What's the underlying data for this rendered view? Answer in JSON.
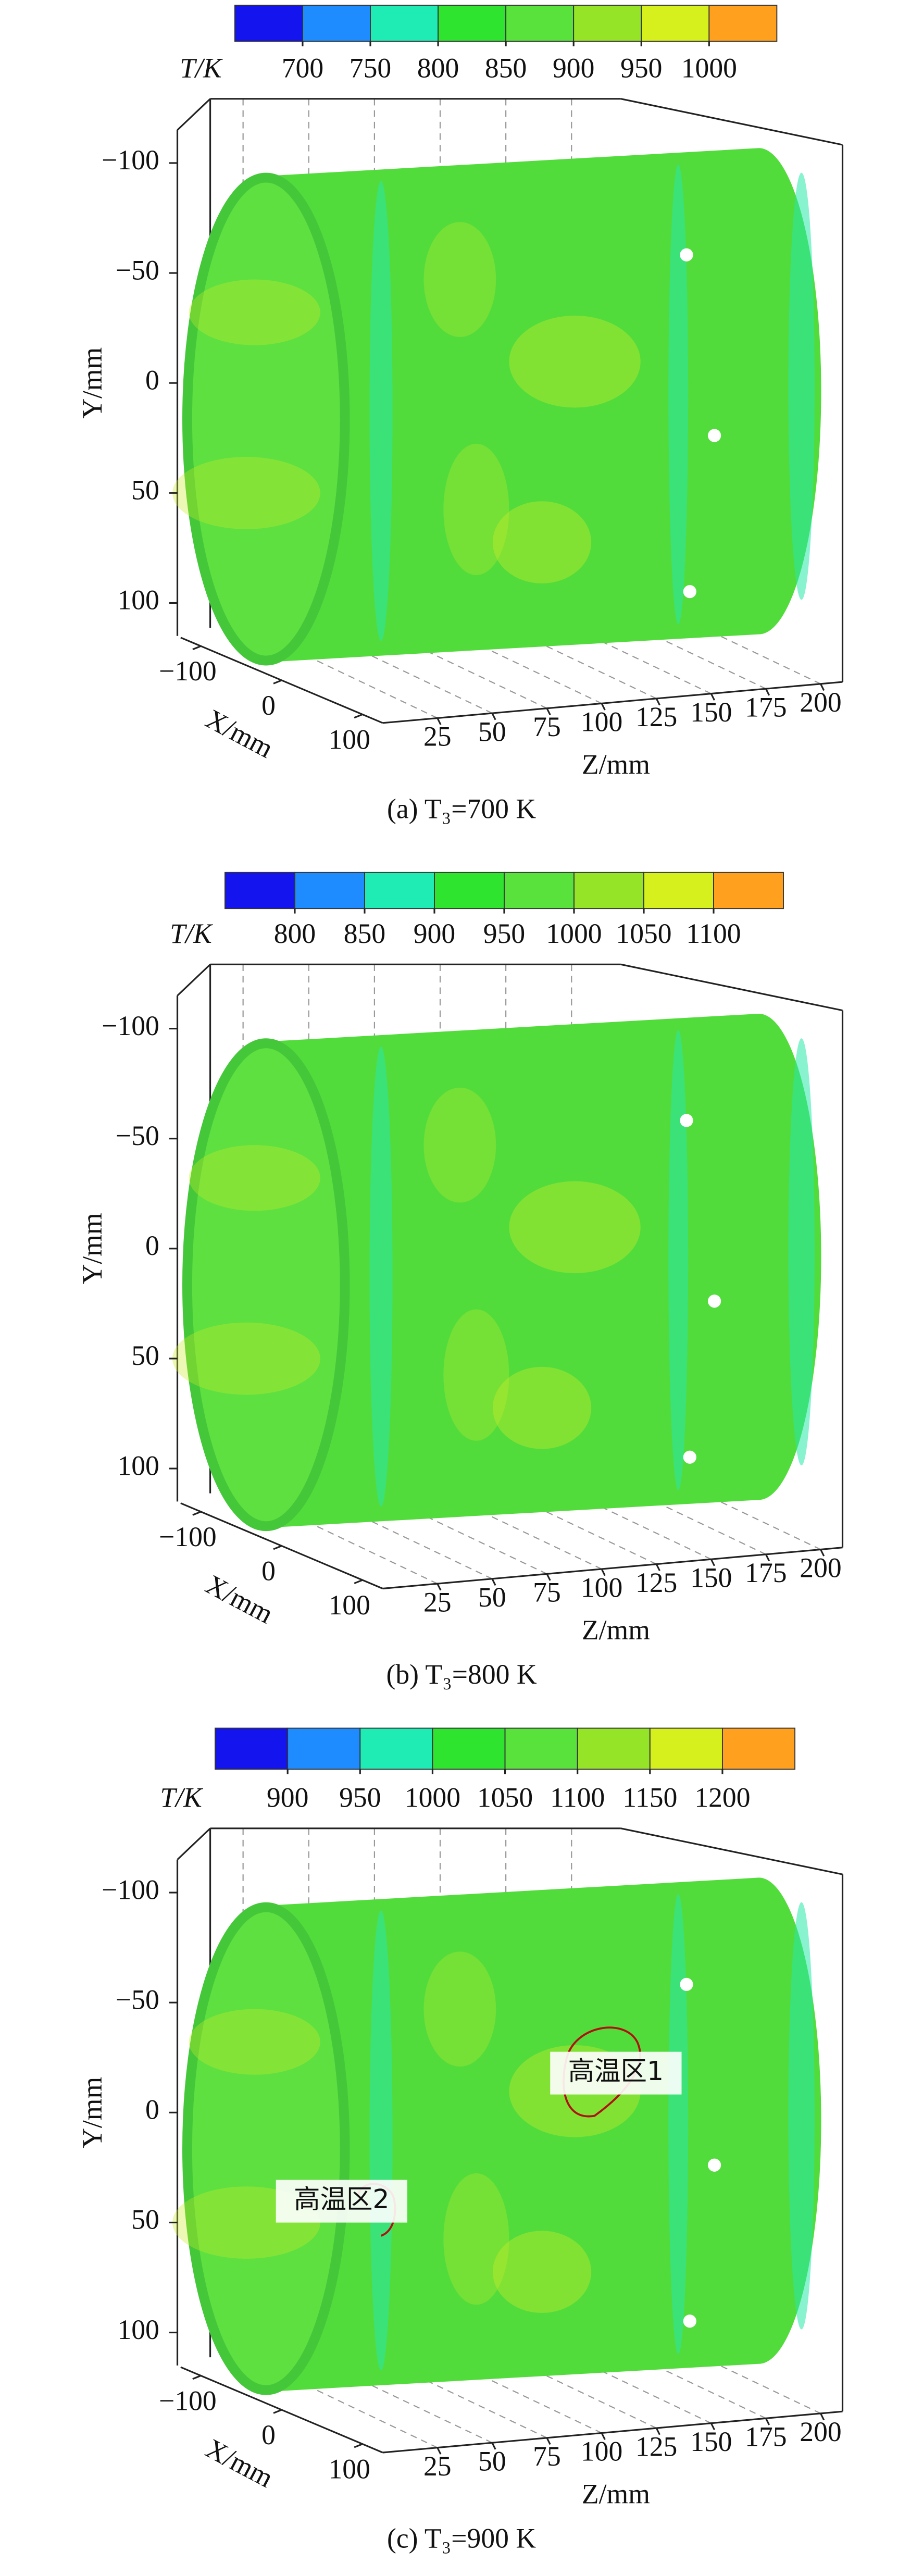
{
  "chart_data": [
    {
      "type": "surface3d",
      "caption": "(a) T₃=700 K",
      "colorbar_label": "T/K",
      "colorbar_colors": [
        "#1414ee",
        "#1e8cff",
        "#1eecb4",
        "#2ee42e",
        "#5ae23c",
        "#96e428",
        "#d6f01e",
        "#ffa01e"
      ],
      "colorbar_ticks": [
        700,
        750,
        800,
        850,
        900,
        950,
        1000
      ],
      "ylabel": "Y/mm",
      "xlabel": "X/mm",
      "zlabel": "Z/mm",
      "ylim": [
        -115,
        115
      ],
      "yticks": [
        {
          "value": -100,
          "label": "−100"
        },
        {
          "value": -50,
          "label": "−50"
        },
        0,
        50,
        100
      ],
      "xlim": [
        -125,
        125
      ],
      "xticks": [
        {
          "value": -100,
          "label": "−100"
        },
        0,
        100
      ],
      "zlim": [
        0,
        210
      ],
      "zticks": [
        25,
        50,
        75,
        100,
        125,
        150,
        175,
        200
      ]
    },
    {
      "type": "surface3d",
      "caption": "(b) T₃=800 K",
      "colorbar_label": "T/K",
      "colorbar_colors": [
        "#1414ee",
        "#1e8cff",
        "#1eecb4",
        "#2ee42e",
        "#5ae23c",
        "#96e428",
        "#d6f01e",
        "#ffa01e"
      ],
      "colorbar_ticks": [
        800,
        850,
        900,
        950,
        1000,
        1050,
        1100
      ],
      "ylabel": "Y/mm",
      "xlabel": "X/mm",
      "zlabel": "Z/mm",
      "ylim": [
        -115,
        115
      ],
      "yticks": [
        {
          "value": -100,
          "label": "−100"
        },
        {
          "value": -50,
          "label": "−50"
        },
        0,
        50,
        100
      ],
      "xlim": [
        -125,
        125
      ],
      "xticks": [
        {
          "value": -100,
          "label": "−100"
        },
        0,
        100
      ],
      "zlim": [
        0,
        210
      ],
      "zticks": [
        25,
        50,
        75,
        100,
        125,
        150,
        175,
        200
      ]
    },
    {
      "type": "surface3d",
      "caption": "(c) T₃=900 K",
      "colorbar_label": "T/K",
      "colorbar_colors": [
        "#1414ee",
        "#1e8cff",
        "#1eecb4",
        "#2ee42e",
        "#5ae23c",
        "#96e428",
        "#d6f01e",
        "#ffa01e"
      ],
      "colorbar_ticks": [
        900,
        950,
        1000,
        1050,
        1100,
        1150,
        1200
      ],
      "ylabel": "Y/mm",
      "xlabel": "X/mm",
      "zlabel": "Z/mm",
      "ylim": [
        -115,
        115
      ],
      "yticks": [
        {
          "value": -100,
          "label": "−100"
        },
        {
          "value": -50,
          "label": "−50"
        },
        0,
        50,
        100
      ],
      "xlim": [
        -125,
        125
      ],
      "xticks": [
        {
          "value": -100,
          "label": "−100"
        },
        0,
        100
      ],
      "zlim": [
        0,
        210
      ],
      "zticks": [
        25,
        50,
        75,
        100,
        125,
        150,
        175,
        200
      ],
      "annotations": [
        "高温区1",
        "高温区2"
      ]
    }
  ]
}
